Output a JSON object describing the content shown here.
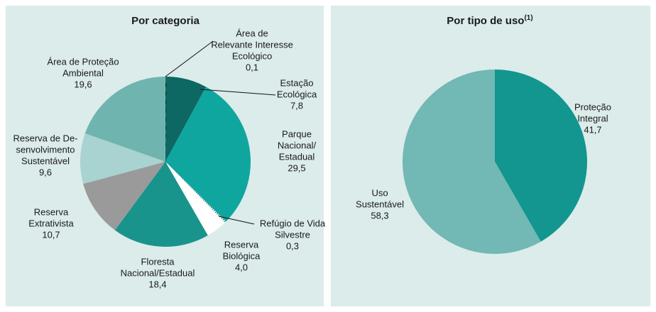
{
  "chart_data": [
    {
      "type": "pie",
      "title": "Por categoria",
      "labels": [
        [
          "Área de",
          "Relevante Interesse",
          "Ecológico"
        ],
        [
          "Estação",
          "Ecológica"
        ],
        [
          "Parque",
          "Nacional/",
          "Estadual"
        ],
        [
          "Refúgio de Vida",
          "Silvestre"
        ],
        [
          "Reserva",
          "Biológica"
        ],
        [
          "Floresta",
          "Nacional/Estadual"
        ],
        [
          "Reserva",
          "Extrativista"
        ],
        [
          "Reserva de De-",
          "senvolvimento",
          "Sustentável"
        ],
        [
          "Área de Proteção",
          "Ambiental"
        ]
      ],
      "values": [
        0.1,
        7.8,
        29.5,
        0.3,
        4.0,
        18.4,
        10.7,
        9.6,
        19.6
      ],
      "value_labels": [
        "0,1",
        "7,8",
        "29,5",
        "0,3",
        "4,0",
        "18,4",
        "10,7",
        "9,6",
        "19,6"
      ],
      "colors": [
        "#0b5f5b",
        "#0d6763",
        "#10a6a0",
        "#ffffff",
        "#ffffff",
        "#19948c",
        "#9a9a9a",
        "#a9d3d0",
        "#70b4b0"
      ],
      "hatched": [
        3
      ],
      "dotted": [
        0
      ]
    },
    {
      "type": "pie",
      "title": "Por tipo de uso",
      "title_note": "(1)",
      "labels": [
        [
          "Proteção",
          "Integral"
        ],
        [
          "Uso",
          "Sustentável"
        ]
      ],
      "values": [
        41.7,
        58.3
      ],
      "value_labels": [
        "41,7",
        "58,3"
      ],
      "colors": [
        "#12968f",
        "#72b8b4"
      ]
    }
  ]
}
